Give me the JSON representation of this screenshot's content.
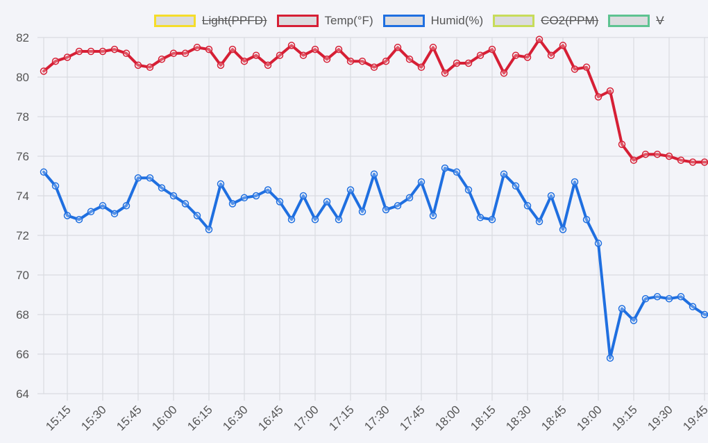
{
  "legend": {
    "items": [
      {
        "label": "Light(PPFD)",
        "color": "#f5dd2a",
        "hidden": true
      },
      {
        "label": "Temp(°F)",
        "color": "#d61f35",
        "hidden": false
      },
      {
        "label": "Humid(%)",
        "color": "#1f6fe0",
        "hidden": false
      },
      {
        "label": "CO2(PPM)",
        "color": "#c7dc5a",
        "hidden": true
      },
      {
        "label": "V",
        "color": "#5ec391",
        "hidden": true
      }
    ]
  },
  "chart_data": {
    "type": "line",
    "title": "",
    "xlabel": "",
    "ylabel": "",
    "ylim": [
      64,
      82
    ],
    "y_ticks": [
      64,
      66,
      68,
      70,
      72,
      74,
      76,
      78,
      80,
      82
    ],
    "x_tick_labels": [
      "15:15",
      "15:30",
      "15:45",
      "16:00",
      "16:15",
      "16:30",
      "16:45",
      "17:00",
      "17:15",
      "17:30",
      "17:45",
      "18:00",
      "18:15",
      "18:30",
      "18:45",
      "19:00",
      "19:15",
      "19:30",
      "19:45"
    ],
    "grid": true,
    "legend_position": "top",
    "x": [
      "15:05",
      "15:10",
      "15:15",
      "15:20",
      "15:25",
      "15:30",
      "15:35",
      "15:40",
      "15:45",
      "15:50",
      "15:55",
      "16:00",
      "16:05",
      "16:10",
      "16:15",
      "16:20",
      "16:25",
      "16:30",
      "16:35",
      "16:40",
      "16:45",
      "16:50",
      "16:55",
      "17:00",
      "17:05",
      "17:10",
      "17:15",
      "17:20",
      "17:25",
      "17:30",
      "17:35",
      "17:40",
      "17:45",
      "17:50",
      "17:55",
      "18:00",
      "18:05",
      "18:10",
      "18:15",
      "18:20",
      "18:25",
      "18:30",
      "18:35",
      "18:40",
      "18:45",
      "18:50",
      "18:55",
      "19:00",
      "19:05",
      "19:10",
      "19:15",
      "19:20",
      "19:25",
      "19:30",
      "19:35",
      "19:40",
      "19:45",
      "19:50"
    ],
    "series": [
      {
        "name": "Temp(°F)",
        "color": "#d61f35",
        "values": [
          80.3,
          80.8,
          81.0,
          81.3,
          81.3,
          81.3,
          81.4,
          81.2,
          80.6,
          80.5,
          80.9,
          81.2,
          81.2,
          81.5,
          81.4,
          80.6,
          81.4,
          80.8,
          81.1,
          80.6,
          81.1,
          81.6,
          81.1,
          81.4,
          80.9,
          81.4,
          80.8,
          80.8,
          80.5,
          80.8,
          81.5,
          80.9,
          80.5,
          81.5,
          80.2,
          80.7,
          80.7,
          81.1,
          81.4,
          80.2,
          81.1,
          81.0,
          81.9,
          81.1,
          81.6,
          80.4,
          80.5,
          79.0,
          79.3,
          76.6,
          75.8,
          76.1,
          76.1,
          76.0,
          75.8,
          75.7,
          75.7,
          75.7
        ]
      },
      {
        "name": "Humid(%)",
        "color": "#1f6fe0",
        "values": [
          75.2,
          74.5,
          73.0,
          72.8,
          73.2,
          73.5,
          73.1,
          73.5,
          74.9,
          74.9,
          74.4,
          74.0,
          73.6,
          73.0,
          72.3,
          74.6,
          73.6,
          73.9,
          74.0,
          74.3,
          73.7,
          72.8,
          74.0,
          72.8,
          73.7,
          72.8,
          74.3,
          73.2,
          75.1,
          73.3,
          73.5,
          73.9,
          74.7,
          73.0,
          75.4,
          75.2,
          74.3,
          72.9,
          72.8,
          75.1,
          74.5,
          73.5,
          72.7,
          74.0,
          72.3,
          74.7,
          72.8,
          71.6,
          65.8,
          68.3,
          67.7,
          68.8,
          68.9,
          68.8,
          68.9,
          68.4,
          68.0,
          68.0
        ]
      }
    ]
  }
}
